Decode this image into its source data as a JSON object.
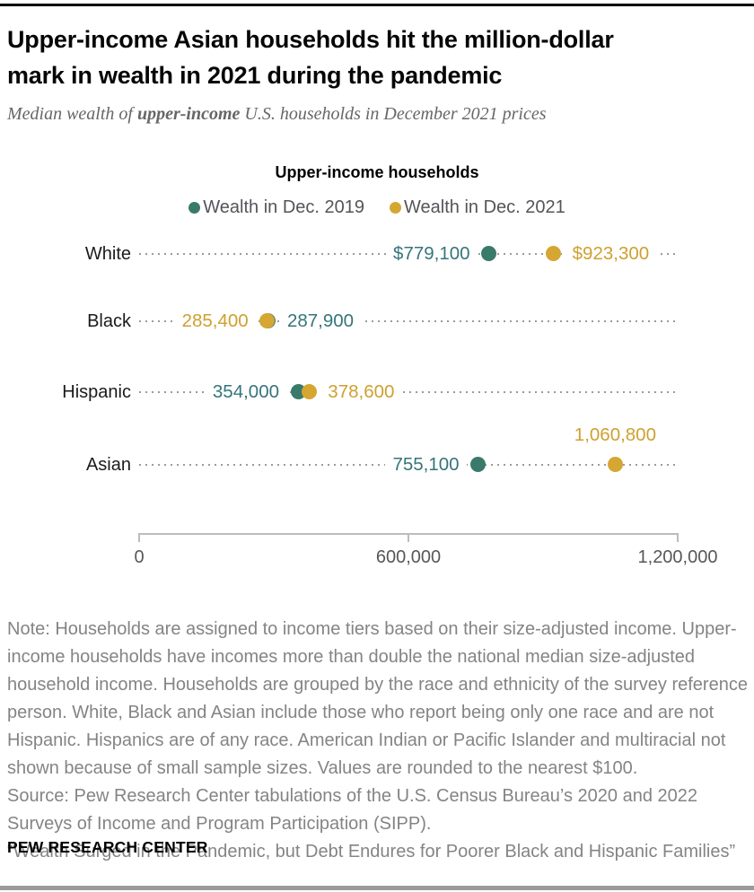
{
  "page": {
    "title_line1": "Upper-income Asian households hit the million-dollar",
    "title_line2": "mark in wealth in 2021 during the pandemic",
    "subtitle_prefix": "Median wealth of ",
    "subtitle_bold": "upper-income",
    "subtitle_suffix": " U.S. households in December 2021 prices",
    "footer": "PEW RESEARCH CENTER"
  },
  "notes": {
    "note": "Note: Households are assigned to income tiers based on their size-adjusted income. Upper-income households have incomes more than double the national median size-adjusted household income. Households are grouped by the race and ethnicity of the survey reference person. White, Black and Asian include those who report being only one race and are not Hispanic. Hispanics are of any race. American Indian or Pacific Islander and multiracial not shown because of small sample sizes. Values are rounded to the nearest $100.",
    "source": "Source: Pew Research Center tabulations of the U.S. Census Bureau’s 2020 and 2022 Surveys of Income and Program Participation (SIPP).",
    "quote": "“Wealth Surged in the Pandemic, but Debt Endures for Poorer Black and Hispanic Families”"
  },
  "chart_data": {
    "type": "scatter",
    "title": "Upper-income households",
    "categories": [
      "White",
      "Black",
      "Hispanic",
      "Asian"
    ],
    "series": [
      {
        "name": "Wealth in Dec. 2019",
        "color": "#3a7a6b",
        "text_color": "#35757a",
        "values": [
          779100,
          287900,
          354000,
          755100
        ],
        "labels": [
          "$779,100",
          "287,900",
          "354,000",
          "755,100"
        ],
        "label_side": [
          "left",
          "right",
          "left",
          "left"
        ]
      },
      {
        "name": "Wealth in Dec. 2021",
        "color": "#d5a632",
        "text_color": "#cfa02f",
        "values": [
          923300,
          285400,
          378600,
          1060800
        ],
        "labels": [
          "$923,300",
          "285,400",
          "378,600",
          "1,060,800"
        ],
        "label_side": [
          "right",
          "left",
          "right",
          "above"
        ]
      }
    ],
    "xlim": [
      0,
      1200000
    ],
    "x_ticks": [
      {
        "value": 0,
        "label": "0"
      },
      {
        "value": 600000,
        "label": "600,000"
      },
      {
        "value": 1200000,
        "label": "1,200,000"
      }
    ],
    "legend_position": "top",
    "grid": false
  },
  "colors": {
    "teal": "#3a7a6b",
    "gold": "#d5a632",
    "leader_dots": "#9b9b9b",
    "axis": "#bcbcbc",
    "note_text": "#848484",
    "top_rule": "#000000",
    "bottom_rule": "#9a9a9a"
  }
}
